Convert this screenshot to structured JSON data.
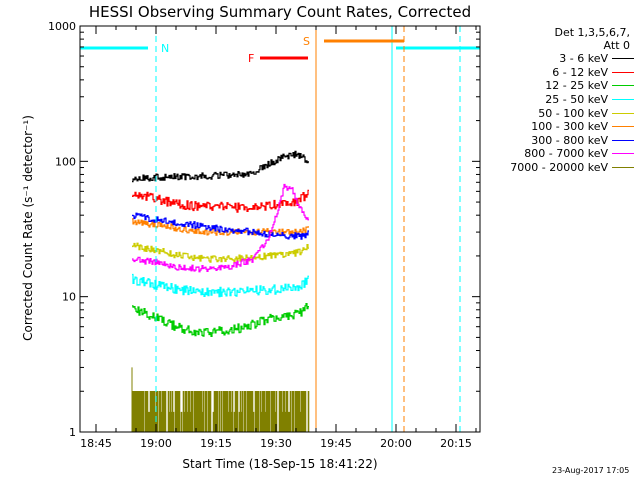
{
  "chart_data": {
    "type": "line",
    "title": "HESSI Observing Summary Count Rates, Corrected",
    "xlabel": "Start Time (18-Sep-15 18:41:22)",
    "ylabel": "Corrected Count Rate (s⁻¹ detector⁻¹)",
    "y_scale": "log",
    "ylim": [
      1,
      1000
    ],
    "xlim": [
      "18:41",
      "20:21"
    ],
    "x_ticks": [
      "18:45",
      "19:00",
      "19:15",
      "19:30",
      "19:45",
      "20:00",
      "20:15"
    ],
    "y_ticks": [
      "1",
      "10",
      "100",
      "1000"
    ],
    "grid": false,
    "legend": {
      "position": "right",
      "header": [
        "Det 1,3,5,6,7,",
        "Att 0"
      ]
    },
    "series": [
      {
        "name": "3 - 6 keV",
        "color": "#000000",
        "x": [
          "18:54",
          "19:00",
          "19:06",
          "19:12",
          "19:18",
          "19:24",
          "19:28",
          "19:32",
          "19:35",
          "19:37",
          "19:38"
        ],
        "values": [
          74,
          76,
          77,
          78,
          79,
          82,
          95,
          108,
          113,
          106,
          95
        ]
      },
      {
        "name": "6 - 12 keV",
        "color": "#ff0000",
        "x": [
          "18:54",
          "19:00",
          "19:06",
          "19:12",
          "19:18",
          "19:24",
          "19:28",
          "19:32",
          "19:35",
          "19:37",
          "19:38"
        ],
        "values": [
          58,
          53,
          48,
          46,
          46,
          45,
          47,
          49,
          50,
          55,
          60
        ]
      },
      {
        "name": "12 - 25 keV",
        "color": "#00cc00",
        "x": [
          "18:54",
          "19:00",
          "19:06",
          "19:12",
          "19:18",
          "19:24",
          "19:28",
          "19:32",
          "19:35",
          "19:37",
          "19:38"
        ],
        "values": [
          8.3,
          7.0,
          5.8,
          5.4,
          5.6,
          6.2,
          6.8,
          7.2,
          7.4,
          8.0,
          8.8
        ]
      },
      {
        "name": "25 - 50 keV",
        "color": "#00ffff",
        "x": [
          "18:54",
          "19:00",
          "19:06",
          "19:12",
          "19:18",
          "19:24",
          "19:28",
          "19:32",
          "19:35",
          "19:37",
          "19:38"
        ],
        "values": [
          13.5,
          12.2,
          11.2,
          10.8,
          10.8,
          11.0,
          11.2,
          11.4,
          11.8,
          12.5,
          14
        ]
      },
      {
        "name": "50 - 100 keV",
        "color": "#cccc00",
        "x": [
          "18:54",
          "19:00",
          "19:06",
          "19:12",
          "19:18",
          "19:24",
          "19:28",
          "19:32",
          "19:35",
          "19:37",
          "19:38"
        ],
        "values": [
          24,
          22,
          20,
          19,
          19,
          19.5,
          20,
          20.5,
          21,
          22,
          24
        ]
      },
      {
        "name": "100 - 300 keV",
        "color": "#ff8000",
        "x": [
          "18:54",
          "19:00",
          "19:06",
          "19:12",
          "19:18",
          "19:24",
          "19:28",
          "19:32",
          "19:35",
          "19:37",
          "19:38"
        ],
        "values": [
          36,
          34,
          32,
          30,
          30,
          30,
          30,
          30,
          30,
          31,
          32
        ]
      },
      {
        "name": "300 - 800 keV",
        "color": "#0000ff",
        "x": [
          "18:54",
          "19:00",
          "19:06",
          "19:12",
          "19:18",
          "19:24",
          "19:28",
          "19:32",
          "19:35",
          "19:37",
          "19:38"
        ],
        "values": [
          40,
          37,
          35,
          33,
          31,
          30,
          29,
          28,
          28,
          28,
          29
        ]
      },
      {
        "name": "800 - 7000 keV",
        "color": "#ff00ff",
        "x": [
          "18:54",
          "19:00",
          "19:06",
          "19:12",
          "19:18",
          "19:24",
          "19:28",
          "19:30",
          "19:32",
          "19:34",
          "19:36",
          "19:38"
        ],
        "values": [
          19,
          18,
          16.5,
          16,
          16.5,
          19,
          27,
          40,
          66,
          62,
          45,
          38
        ]
      },
      {
        "name": "7000 - 20000 keV",
        "color": "#808000",
        "x": [
          "18:54",
          "19:00",
          "19:06",
          "19:12",
          "19:18",
          "19:24",
          "19:30",
          "19:36",
          "19:38"
        ],
        "values": [
          2,
          2,
          2,
          2,
          2,
          2,
          2,
          2,
          2
        ]
      }
    ],
    "annotations": [
      {
        "label": "N",
        "color": "#00ffff",
        "kind": "night",
        "intervals": [
          [
            "18:41",
            "18:58"
          ],
          [
            "20:00",
            "20:21"
          ]
        ],
        "markers_solid": [
          "18:41",
          "19:59"
        ],
        "markers_dashed": [
          "19:00",
          "20:16"
        ]
      },
      {
        "label": "S",
        "color": "#ff8000",
        "kind": "saa",
        "intervals": [
          [
            "19:42",
            "20:02"
          ]
        ],
        "markers_solid": [
          "19:40"
        ],
        "markers_dashed": [
          "20:02"
        ]
      },
      {
        "label": "F",
        "color": "#ff0000",
        "kind": "flare",
        "intervals": [
          [
            "19:26",
            "19:38"
          ]
        ]
      }
    ]
  },
  "footer": {
    "date_stamp": "23-Aug-2017 17:05"
  }
}
